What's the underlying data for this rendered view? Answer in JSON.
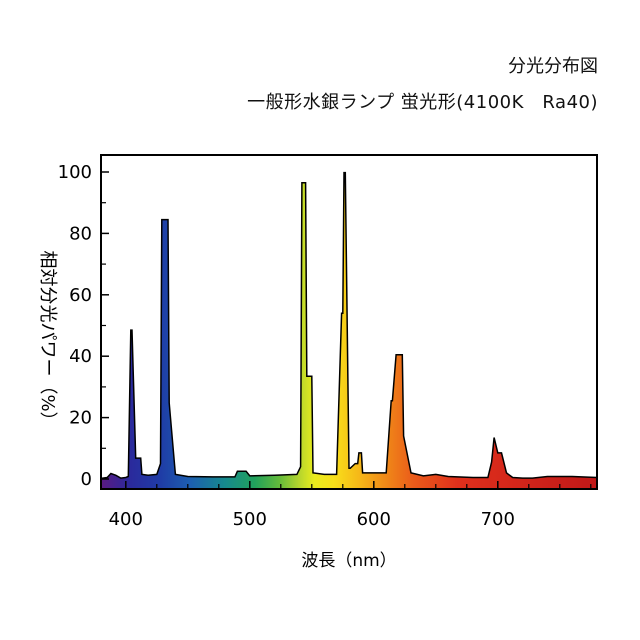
{
  "chart_data": {
    "type": "area",
    "title": "分光分布図",
    "subtitle": "一般形水銀ランプ 蛍光形(4100K　Ra40)",
    "ylabel": "相対分光パワー（%）",
    "xlabel": "波長（nm）",
    "xlim": [
      380,
      780
    ],
    "ylim": [
      0,
      100
    ],
    "xticks": [
      "400",
      "500",
      "600",
      "700"
    ],
    "yticks": [
      "0",
      "20",
      "40",
      "60",
      "80",
      "100"
    ],
    "grid": false,
    "x": [
      380,
      385,
      388,
      392,
      396,
      400,
      402,
      404,
      405,
      408,
      409,
      412,
      413,
      418,
      425,
      428,
      429,
      434,
      435,
      440,
      450,
      470,
      488,
      490,
      497,
      500,
      520,
      538,
      541,
      542,
      545,
      546,
      550,
      551,
      560,
      570,
      574,
      575,
      576,
      577,
      580,
      581,
      585,
      587,
      588,
      590,
      591,
      595,
      610,
      614,
      615,
      618,
      619,
      623,
      624,
      630,
      640,
      650,
      660,
      680,
      692,
      695,
      697,
      700,
      703,
      707,
      712,
      720,
      728,
      740,
      760,
      780
    ],
    "y": [
      0.2,
      0.5,
      1.8,
      1.2,
      0.3,
      0.5,
      0.8,
      48.5,
      48.5,
      6.8,
      6.8,
      6.8,
      1.5,
      1.2,
      1.5,
      5.0,
      84.5,
      84.5,
      24.8,
      1.5,
      0.8,
      0.7,
      0.7,
      2.5,
      2.5,
      1.0,
      1.2,
      1.5,
      4.0,
      96.5,
      96.5,
      33.5,
      33.5,
      2.0,
      1.5,
      1.5,
      54.0,
      54.0,
      99.8,
      99.8,
      3.5,
      3.5,
      5.0,
      5.0,
      8.5,
      8.5,
      2.0,
      2.0,
      2.0,
      25.5,
      25.5,
      40.5,
      40.5,
      40.5,
      14.0,
      2.0,
      1.0,
      1.5,
      0.8,
      0.5,
      0.5,
      5.5,
      13.5,
      8.5,
      8.5,
      2.0,
      0.5,
      0.3,
      0.3,
      0.8,
      0.8,
      0.5
    ]
  }
}
